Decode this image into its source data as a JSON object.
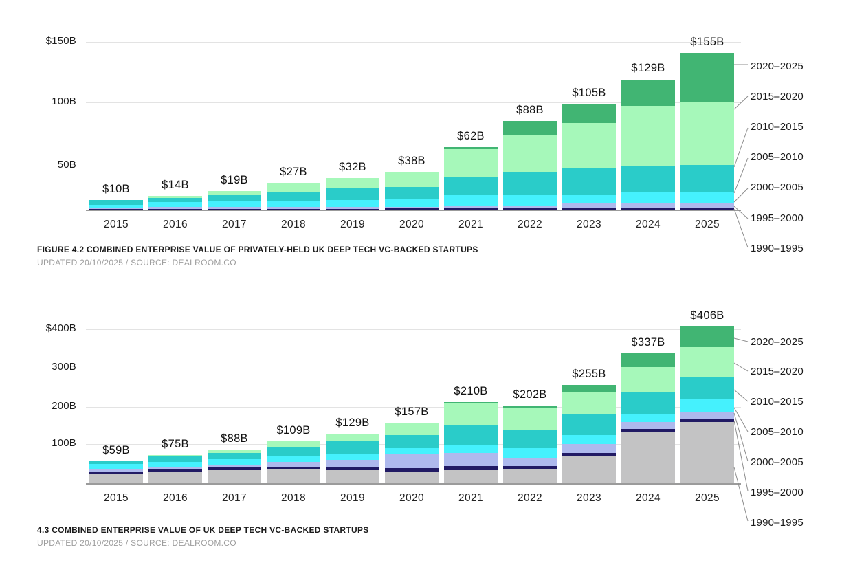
{
  "charts": [
    {
      "title": "FIGURE 4.2 COMBINED ENTERPRISE VALUE OF PRIVATELY-HELD UK DEEP TECH VC-BACKED STARTUPS",
      "source_line": "UPDATED 20/10/2025 / SOURCE: DEALROOM.CO",
      "chart_data": {
        "type": "bar",
        "stacked": true,
        "unit": "USD billions",
        "categories": [
          "2015",
          "2016",
          "2017",
          "2018",
          "2019",
          "2020",
          "2021",
          "2022",
          "2023",
          "2024",
          "2025"
        ],
        "bar_labels": [
          "$10B",
          "$14B",
          "$19B",
          "$27B",
          "$32B",
          "$38B",
          "$62B",
          "$88B",
          "$105B",
          "$129B",
          "$155B"
        ],
        "totals": [
          10,
          14,
          19,
          27,
          32,
          38,
          62,
          88,
          105,
          129,
          155
        ],
        "series": [
          {
            "name": "1990–1995",
            "color": "#c3c3c4",
            "values": [
              0.2,
              0.3,
              0.3,
              0.4,
              0.4,
              0.4,
              0.4,
              0.4,
              0.4,
              0.5,
              0.5
            ]
          },
          {
            "name": "1995–2000",
            "color": "#211a64",
            "values": [
              0.9,
              1.2,
              1.2,
              1.2,
              1.2,
              1.4,
              1.6,
              1.5,
              1.7,
              2.0,
              1.6
            ]
          },
          {
            "name": "2000–2005",
            "color": "#aeb9ed",
            "values": [
              1.5,
              2.0,
              2.2,
              1.6,
              1.6,
              1.8,
              2.4,
              2.2,
              4.6,
              4.8,
              5.2
            ]
          },
          {
            "name": "2005–2010",
            "color": "#45f1fd",
            "values": [
              2.9,
              4.5,
              5.3,
              5.3,
              7.0,
              7.0,
              10.2,
              11.0,
              8.0,
              10.3,
              10.7
            ]
          },
          {
            "name": "2010–2015",
            "color": "#2accc9",
            "values": [
              4.5,
              4.5,
              6.0,
              10.0,
              12.0,
              12.4,
              18.6,
              22.6,
              26.4,
              25.5,
              26.7
            ]
          },
          {
            "name": "2015–2020",
            "color": "#a6f8ba",
            "values": [
              0,
              1.5,
              4.0,
              8.5,
              9.8,
              15.0,
              26.8,
              37.0,
              44.9,
              59.9,
              62.5
            ]
          },
          {
            "name": "2020–2025",
            "color": "#41b573",
            "values": [
              0,
              0,
              0,
              0,
              0,
              0,
              2.0,
              13.3,
              19.0,
              26.0,
              47.8
            ]
          }
        ],
        "y_axis_ticks": [
          "$150B",
          "100B",
          "50B"
        ],
        "y_axis_tick_values": [
          150,
          100,
          50
        ],
        "ylim": [
          0,
          180
        ],
        "gridlines": true,
        "legend_position": "right",
        "legend": [
          "2020–2025",
          "2015–2020",
          "2010–2015",
          "2005–2010",
          "2000–2005",
          "1995–2000",
          "1990–1995"
        ]
      }
    },
    {
      "title": "4.3 COMBINED ENTERPRISE VALUE OF UK DEEP TECH VC-BACKED STARTUPS",
      "source_line": "UPDATED 20/10/2025 / SOURCE: DEALROOM.CO",
      "chart_data": {
        "type": "bar",
        "stacked": true,
        "unit": "USD billions",
        "categories": [
          "2015",
          "2016",
          "2017",
          "2018",
          "2019",
          "2020",
          "2021",
          "2022",
          "2023",
          "2024",
          "2025"
        ],
        "bar_labels": [
          "$59B",
          "$75B",
          "$88B",
          "$109B",
          "$129B",
          "$157B",
          "$210B",
          "$202B",
          "$255B",
          "$337B",
          "$406B"
        ],
        "totals": [
          59,
          75,
          88,
          109,
          129,
          157,
          210,
          202,
          255,
          337,
          406
        ],
        "series": [
          {
            "name": "1990–1995",
            "color": "#c3c3c4",
            "values": [
              25,
              32,
              36,
              37,
              35,
              32.5,
              36,
              38.5,
              72.5,
              134,
              160
            ]
          },
          {
            "name": "1995–2000",
            "color": "#211a64",
            "values": [
              7.5,
              7,
              7,
              7.5,
              7.5,
              8,
              9.5,
              6.7,
              8,
              8,
              6.5
            ]
          },
          {
            "name": "2000–2005",
            "color": "#aeb9ed",
            "values": [
              5,
              4.5,
              4.5,
              12,
              19,
              35.5,
              35,
              21,
              22,
              16.5,
              17.5
            ]
          },
          {
            "name": "2005–2010",
            "color": "#45f1fd",
            "values": [
              13,
              14,
              16,
              17,
              16.5,
              16.5,
              20.5,
              25.5,
              23.5,
              22,
              34
            ]
          },
          {
            "name": "2010–2015",
            "color": "#2accc9",
            "values": [
              8.5,
              14,
              17,
              21.5,
              31,
              34,
              52,
              48,
              53,
              56,
              57
            ]
          },
          {
            "name": "2015–2020",
            "color": "#a6f8ba",
            "values": [
              0,
              3.5,
              7.5,
              14,
              20,
              30.5,
              55,
              55,
              59,
              65,
              77
            ]
          },
          {
            "name": "2020–2025",
            "color": "#41b573",
            "values": [
              0,
              0,
              0,
              0,
              0,
              0,
              2,
              7.3,
              17,
              35.5,
              54
            ]
          }
        ],
        "y_axis_ticks": [
          "$400B",
          "300B",
          "200B",
          "100B"
        ],
        "y_axis_tick_values": [
          400,
          300,
          200,
          100
        ],
        "ylim": [
          0,
          430
        ],
        "gridlines": true,
        "legend_position": "right",
        "legend": [
          "2020–2025",
          "2015–2020",
          "2010–2015",
          "2005–2010",
          "2000–2005",
          "1995–2000",
          "1990–1995"
        ]
      }
    }
  ]
}
